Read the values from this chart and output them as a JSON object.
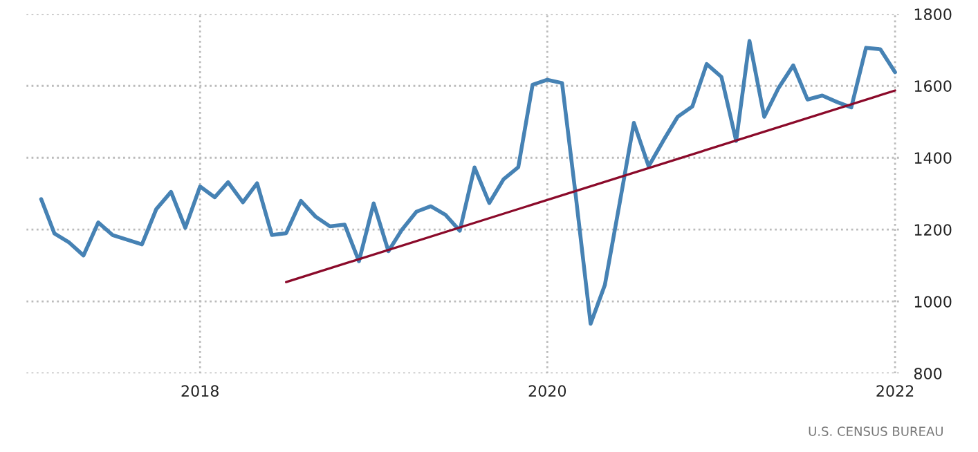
{
  "chart_data": {
    "type": "line",
    "x": [
      "2017-02",
      "2017-03",
      "2017-04",
      "2017-05",
      "2017-06",
      "2017-07",
      "2017-08",
      "2017-09",
      "2017-10",
      "2017-11",
      "2017-12",
      "2018-01",
      "2018-02",
      "2018-03",
      "2018-04",
      "2018-05",
      "2018-06",
      "2018-07",
      "2018-08",
      "2018-09",
      "2018-10",
      "2018-11",
      "2018-12",
      "2019-01",
      "2019-02",
      "2019-03",
      "2019-04",
      "2019-05",
      "2019-06",
      "2019-07",
      "2019-08",
      "2019-09",
      "2019-10",
      "2019-11",
      "2019-12",
      "2020-01",
      "2020-02",
      "2020-03",
      "2020-04",
      "2020-05",
      "2020-06",
      "2020-07",
      "2020-08",
      "2020-09",
      "2020-10",
      "2020-11",
      "2020-12",
      "2021-01",
      "2021-02",
      "2021-03",
      "2021-04",
      "2021-05",
      "2021-06",
      "2021-07",
      "2021-08",
      "2021-09",
      "2021-10",
      "2021-11",
      "2021-12",
      "2022-01"
    ],
    "series": [
      {
        "color": "#4682b4",
        "values": [
          1285,
          1189,
          1164,
          1128,
          1220,
          1185,
          1172,
          1159,
          1257,
          1305,
          1205,
          1320,
          1290,
          1332,
          1276,
          1329,
          1185,
          1190,
          1280,
          1236,
          1209,
          1214,
          1112,
          1273,
          1140,
          1199,
          1250,
          1265,
          1241,
          1197,
          1373,
          1274,
          1340,
          1374,
          1603,
          1617,
          1608,
          1292,
          938,
          1046,
          1273,
          1497,
          1376,
          1448,
          1514,
          1543,
          1661,
          1625,
          1447,
          1725,
          1514,
          1594,
          1657,
          1562,
          1573,
          1555,
          1540,
          1706,
          1702,
          1638
        ]
      },
      {
        "color": "#8b0a2a",
        "x": [
          "2018-07",
          "2022-01"
        ],
        "values": [
          1054,
          1587
        ]
      }
    ],
    "xlim": [
      "2017-01-01",
      "2022-01-15"
    ],
    "xticks": [
      {
        "value": "2018-01",
        "label": "2018"
      },
      {
        "value": "2020-01",
        "label": "2020"
      },
      {
        "value": "2022-01",
        "label": "2022"
      }
    ],
    "ylim": [
      800,
      1800
    ],
    "yticks": [
      800,
      1000,
      1200,
      1400,
      1600,
      1800
    ],
    "grid": true,
    "line_style": "solid",
    "marker": "none",
    "annotations": [
      "U.S. CENSUS BUREAU"
    ]
  }
}
